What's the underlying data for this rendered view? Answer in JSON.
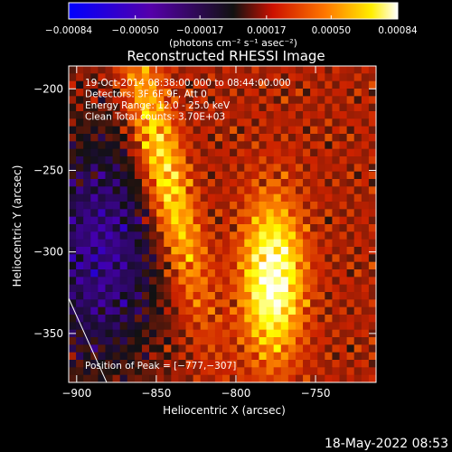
{
  "chart_data": {
    "type": "heatmap",
    "title": "Reconstructed RHESSI Image",
    "xlabel": "Heliocentric X (arcsec)",
    "ylabel": "Heliocentric Y (arcsec)",
    "xlim": [
      -905,
      -712
    ],
    "ylim": [
      -380,
      -186
    ],
    "xticks": [
      -900,
      -850,
      -800,
      -750
    ],
    "xtick_labels": [
      "−900",
      "−850",
      "−800",
      "−750"
    ],
    "yticks": [
      -200,
      -250,
      -300,
      -350
    ],
    "ytick_labels": [
      "−200",
      "−250",
      "−300",
      "−350"
    ],
    "colorbar": {
      "range": [
        -0.00084,
        0.00084
      ],
      "ticks": [
        -0.00084,
        -0.0005,
        -0.00017,
        0.00017,
        0.0005,
        0.00084
      ],
      "tick_labels": [
        "−0.00084",
        "−0.00050",
        "−0.00017",
        "0.00017",
        "0.00050",
        "0.00084"
      ],
      "unit_label": "(photons cm⁻² s⁻¹ asec⁻²)"
    },
    "annotations": [
      "19-Oct-2014 08:38:00.000 to 08:44:00.000",
      "Detectors: 3F 6F 9F, Att 0",
      "Energy Range: 12.0 - 25.0 keV",
      "Clean     Total counts: 3.70E+03"
    ],
    "peak_label": "Position of Peak = [−777,−307]",
    "peak": [
      -777,
      -307
    ],
    "grid": false,
    "colormap": [
      "#0000ff",
      "#4400aa",
      "#111111",
      "#cc2200",
      "#ff8800",
      "#ffff00",
      "#ffffff"
    ]
  },
  "footer": {
    "timestamp": "18-May-2022 08:53"
  }
}
